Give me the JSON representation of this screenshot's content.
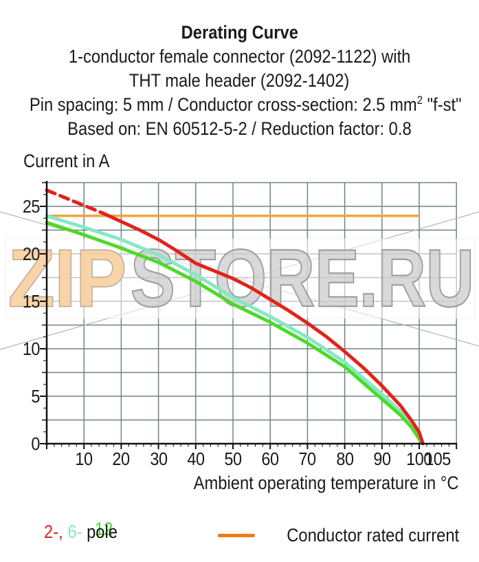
{
  "header": {
    "line1": "Derating Curve",
    "line2": "1-conductor female connector (2092-1122) with",
    "line3": "THT male header (2092-1402)",
    "line4_pre": "Pin spacing: 5 mm / Conductor cross-section: 2.5 mm",
    "line4_sup": "2",
    "line4_post": " \"f-st\"",
    "line5": "Based on: EN 60512-5-2 / Reduction factor: 0.8"
  },
  "chart_data": {
    "type": "line",
    "title": "Derating Curve",
    "xlabel": "Ambient operating temperature in °C",
    "ylabel": "Current in A",
    "xlim": [
      0,
      110
    ],
    "ylim": [
      0,
      27.5
    ],
    "grid": {
      "on": true,
      "x_step": 10,
      "y_step": 2.5
    },
    "x_minor_step": 2,
    "y_minor_step": 1.25,
    "x_ticks_labeled": [
      10,
      20,
      30,
      40,
      50,
      60,
      70,
      80,
      90,
      100,
      105
    ],
    "y_ticks_labeled": [
      0,
      5,
      10,
      15,
      20,
      25
    ],
    "rated_current": {
      "label": "Conductor rated current",
      "value": 24,
      "x_range": [
        0,
        100
      ],
      "color": "#f2a33c"
    },
    "series": [
      {
        "name": "2-pole",
        "color": "#e2231a",
        "width": 5,
        "z": 2,
        "dashed_until_x": 15,
        "points": [
          [
            0,
            26.7
          ],
          [
            5,
            25.9
          ],
          [
            10,
            25.1
          ],
          [
            15,
            24.3
          ],
          [
            20,
            23.4
          ],
          [
            25,
            22.5
          ],
          [
            30,
            21.5
          ],
          [
            35,
            20.3
          ],
          [
            40,
            19.0
          ],
          [
            45,
            18.2
          ],
          [
            50,
            17.4
          ],
          [
            55,
            16.4
          ],
          [
            60,
            15.2
          ],
          [
            65,
            14.0
          ],
          [
            70,
            12.7
          ],
          [
            75,
            11.3
          ],
          [
            80,
            9.7
          ],
          [
            85,
            8.0
          ],
          [
            90,
            6.1
          ],
          [
            95,
            4.0
          ],
          [
            98,
            2.4
          ],
          [
            100,
            1.2
          ],
          [
            101,
            0
          ]
        ]
      },
      {
        "name": "6-pole",
        "color": "#85e8c6",
        "width": 5,
        "z": 0,
        "points": [
          [
            0,
            24.0
          ],
          [
            10,
            22.8
          ],
          [
            20,
            21.5
          ],
          [
            30,
            19.9
          ],
          [
            40,
            17.8
          ],
          [
            50,
            15.4
          ],
          [
            60,
            13.4
          ],
          [
            70,
            11.2
          ],
          [
            80,
            8.6
          ],
          [
            85,
            6.9
          ],
          [
            90,
            5.2
          ],
          [
            95,
            3.4
          ],
          [
            98,
            2.0
          ],
          [
            100,
            0.8
          ],
          [
            101,
            0
          ]
        ]
      },
      {
        "name": "12-pole",
        "color": "#4fd929",
        "width": 5,
        "z": 1,
        "points": [
          [
            0,
            23.3
          ],
          [
            10,
            22.0
          ],
          [
            20,
            20.6
          ],
          [
            30,
            19.1
          ],
          [
            40,
            17.1
          ],
          [
            50,
            14.7
          ],
          [
            60,
            12.8
          ],
          [
            70,
            10.6
          ],
          [
            80,
            8.1
          ],
          [
            85,
            6.4
          ],
          [
            90,
            4.7
          ],
          [
            95,
            3.0
          ],
          [
            98,
            1.7
          ],
          [
            100,
            0.5
          ],
          [
            101,
            0
          ]
        ]
      }
    ],
    "legend_position": "bottom"
  },
  "legend": {
    "pole_2": "2-,",
    "pole_6": "6-",
    "pole_12": "12",
    "pole_word": "pole",
    "rated_label": "Conductor rated current"
  },
  "watermark": {
    "part1": "ZIP",
    "part2": "STORE.RU",
    "part1_color": "#f8cf9f",
    "part2_color": "#c9c9c9"
  }
}
